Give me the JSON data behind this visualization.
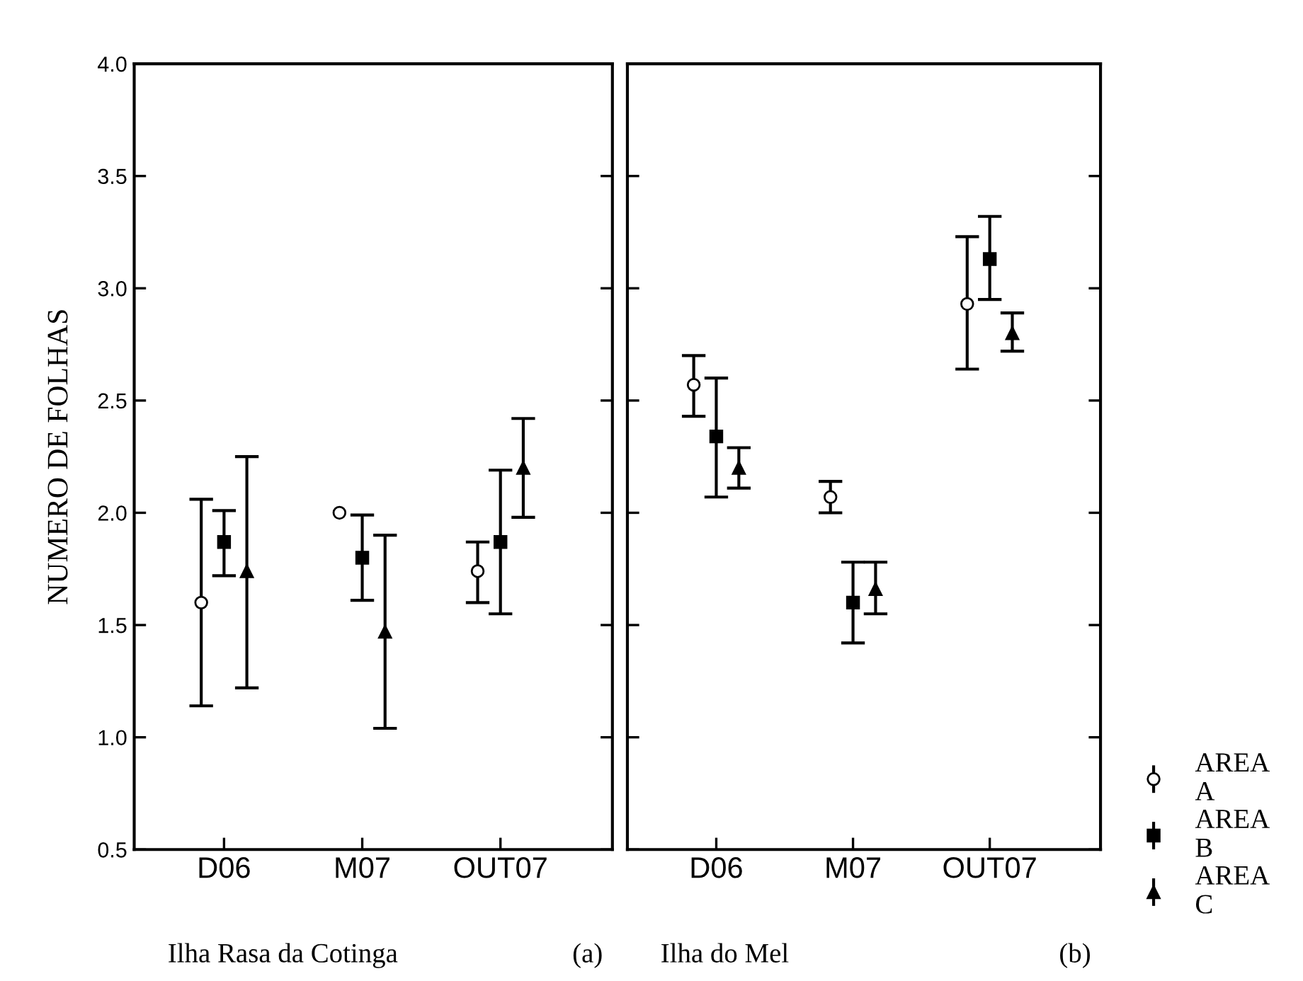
{
  "chart_data": [
    {
      "type": "scatter",
      "ylabel": "NUMERO DE FOLHAS",
      "categories": [
        "D06",
        "M07",
        "OUT07"
      ],
      "ylim": [
        0.5,
        4.0
      ],
      "yticks": [
        0.5,
        {
          "value": 1,
          "label": "1.0"
        },
        1.5,
        {
          "value": 2,
          "label": "2.0"
        },
        2.5,
        {
          "value": 3,
          "label": "3.0"
        },
        3.5,
        {
          "value": 4,
          "label": "4.0"
        }
      ],
      "grid": false,
      "legend": false,
      "annotations": [
        "Ilha Rasa da Cotinga",
        "(a)"
      ],
      "series": [
        {
          "color": "#ffffff",
          "marker": "circle",
          "values": [
            1.6,
            2.0,
            1.74
          ],
          "errors": [
            [
              1.14,
              2.06
            ],
            null,
            [
              1.6,
              1.87
            ]
          ]
        },
        {
          "color": "#000000",
          "marker": "square",
          "values": [
            1.87,
            1.8,
            1.87
          ],
          "errors": [
            [
              1.72,
              2.01
            ],
            [
              1.61,
              1.99
            ],
            [
              1.55,
              2.19
            ]
          ]
        },
        {
          "color": "#000000",
          "marker": "triangle",
          "values": [
            1.74,
            1.47,
            2.2
          ],
          "errors": [
            [
              1.22,
              2.25
            ],
            [
              1.04,
              1.9
            ],
            [
              1.98,
              2.42
            ]
          ]
        }
      ]
    },
    {
      "type": "scatter",
      "categories": [
        "D06",
        "M07",
        "OUT07"
      ],
      "ylim": [
        0.5,
        4.0
      ],
      "yticks": [
        0.5,
        1,
        1.5,
        2,
        2.5,
        3,
        3.5,
        4
      ],
      "tick_labels": "x",
      "grid": false,
      "legend": "right",
      "annotations": [
        "Ilha do Mel",
        "(b)"
      ],
      "series": [
        {
          "name": "AREA A",
          "color": "#ffffff",
          "marker": "circle",
          "values": [
            2.57,
            2.07,
            2.93
          ],
          "errors": [
            [
              2.43,
              2.7
            ],
            [
              2.0,
              2.14
            ],
            [
              2.64,
              3.23
            ]
          ]
        },
        {
          "name": "AREA B",
          "color": "#000000",
          "marker": "square",
          "values": [
            2.34,
            1.6,
            3.13
          ],
          "errors": [
            [
              2.07,
              2.6
            ],
            [
              1.42,
              1.78
            ],
            [
              2.95,
              3.32
            ]
          ]
        },
        {
          "name": "AREA C",
          "color": "#000000",
          "marker": "triangle",
          "values": [
            2.2,
            1.66,
            2.8
          ],
          "errors": [
            [
              2.11,
              2.29
            ],
            [
              1.55,
              1.78
            ],
            [
              2.72,
              2.89
            ]
          ]
        }
      ]
    }
  ]
}
